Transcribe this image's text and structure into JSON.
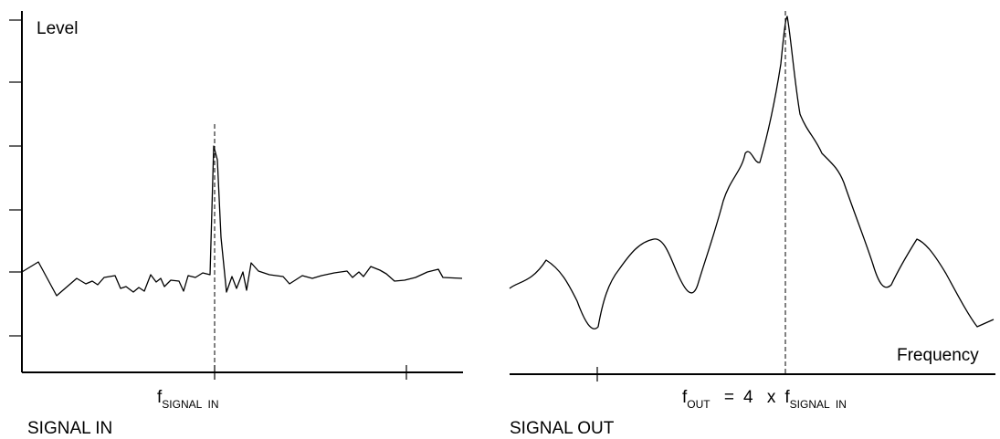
{
  "y_axis_label": "Level",
  "x_axis_label": "Frequency",
  "left_panel": {
    "caption": "SIGNAL IN",
    "marker": {
      "base": "f",
      "subscript": "SIGNAL  IN"
    }
  },
  "right_panel": {
    "caption": "SIGNAL OUT",
    "marker": {
      "lhs_base": "f",
      "lhs_subscript": "OUT",
      "equals": "=",
      "factor": "4",
      "times": "x",
      "rhs_base": "f",
      "rhs_subscript": "SIGNAL  IN"
    }
  },
  "style": {
    "stroke": "#000000",
    "background": "#ffffff"
  }
}
